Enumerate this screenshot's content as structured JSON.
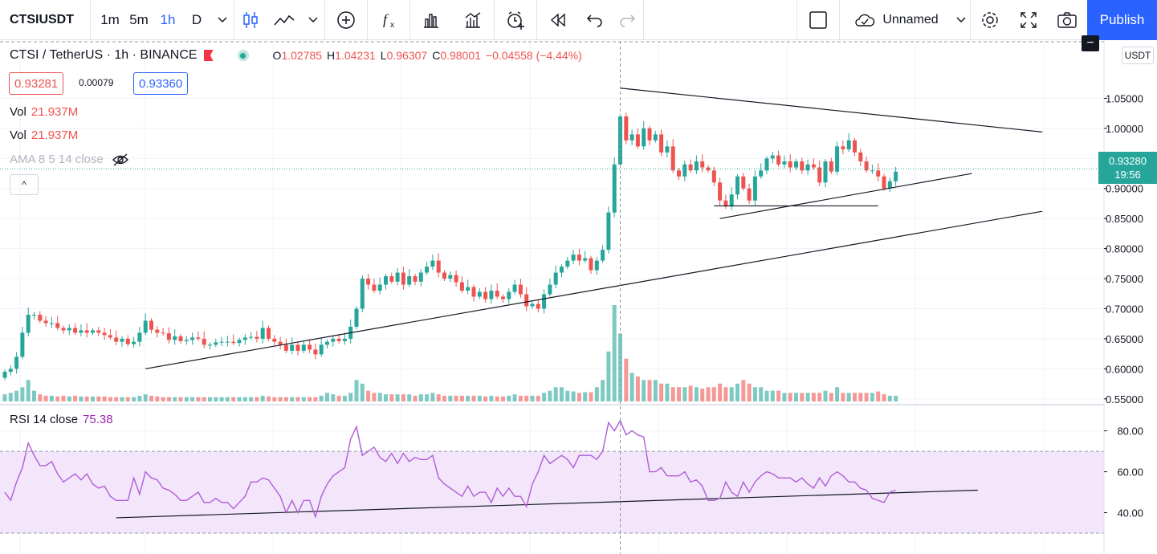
{
  "toolbar": {
    "symbol": "CTSIUSDT",
    "intervals": [
      "1m",
      "5m",
      "1h",
      "D"
    ],
    "active_interval": "1h",
    "layout_name": "Unnamed",
    "publish_label": "Publish",
    "icons": [
      "candles-icon",
      "line-icon",
      "add-icon",
      "indicators-icon",
      "templates-icon",
      "compare-icon",
      "alert-icon",
      "replay-icon",
      "undo-icon",
      "redo-icon",
      "layout-icon",
      "cloud-icon",
      "settings-icon",
      "fullscreen-icon",
      "camera-icon"
    ]
  },
  "legend": {
    "title": "CTSI / TetherUS · 1h · BINANCE",
    "o_label": "O",
    "o": "1.02785",
    "h_label": "H",
    "h": "1.04231",
    "l_label": "L",
    "l": "0.96307",
    "c_label": "C",
    "c": "0.98001",
    "change": "−0.04558 (−4.44%)",
    "bid": "0.93281",
    "spread": "0.00079",
    "ask": "0.93360",
    "vol_label": "Vol",
    "vol_value": "21.937M",
    "ama_label": "AMA 8 5 14 close",
    "collapse_icon": "^",
    "rsi_label": "RSI 14 close",
    "rsi_value": "75.38"
  },
  "axis": {
    "currency": "USDT",
    "last_price": "0.93280",
    "countdown": "19:56",
    "minus": "−"
  },
  "colors": {
    "up": "#26a69a",
    "down": "#ef5350",
    "rsi_line": "#b05cd6",
    "rsi_band": "#f3e6fb",
    "accent": "#2962ff"
  },
  "chart_data": {
    "type": "candlestick",
    "price_axis": {
      "ticks": [
        "1.05000",
        "1.00000",
        "0.95000",
        "0.90000",
        "0.85000",
        "0.80000",
        "0.75000",
        "0.70000",
        "0.65000",
        "0.60000",
        "0.55000"
      ],
      "range": [
        0.547,
        1.08
      ]
    },
    "rsi_axis": {
      "ticks": [
        "80.00",
        "60.00",
        "40.00"
      ],
      "range": [
        21,
        92
      ],
      "band": [
        30,
        70
      ]
    },
    "close": [
      0.595,
      0.6,
      0.62,
      0.66,
      0.69,
      0.69,
      0.68,
      0.676,
      0.676,
      0.668,
      0.664,
      0.668,
      0.66,
      0.664,
      0.66,
      0.664,
      0.66,
      0.656,
      0.652,
      0.645,
      0.65,
      0.641,
      0.645,
      0.66,
      0.68,
      0.665,
      0.66,
      0.659,
      0.648,
      0.654,
      0.646,
      0.648,
      0.652,
      0.65,
      0.64,
      0.64,
      0.644,
      0.645,
      0.645,
      0.643,
      0.648,
      0.652,
      0.653,
      0.65,
      0.668,
      0.65,
      0.645,
      0.64,
      0.63,
      0.64,
      0.63,
      0.64,
      0.632,
      0.624,
      0.64,
      0.645,
      0.65,
      0.646,
      0.65,
      0.67,
      0.7,
      0.75,
      0.74,
      0.73,
      0.74,
      0.754,
      0.745,
      0.76,
      0.74,
      0.754,
      0.745,
      0.76,
      0.77,
      0.78,
      0.76,
      0.75,
      0.756,
      0.744,
      0.73,
      0.736,
      0.72,
      0.728,
      0.716,
      0.73,
      0.72,
      0.716,
      0.728,
      0.74,
      0.724,
      0.704,
      0.708,
      0.7,
      0.724,
      0.74,
      0.76,
      0.77,
      0.78,
      0.79,
      0.78,
      0.784,
      0.764,
      0.78,
      0.798,
      0.86,
      0.94,
      1.02,
      0.98,
      0.99,
      0.97,
      1.0,
      0.98,
      0.99,
      0.96,
      0.97,
      0.93,
      0.92,
      0.94,
      0.93,
      0.945,
      0.935,
      0.93,
      0.91,
      0.88,
      0.87,
      0.89,
      0.92,
      0.9,
      0.88,
      0.92,
      0.93,
      0.95,
      0.955,
      0.94,
      0.945,
      0.935,
      0.945,
      0.93,
      0.94,
      0.935,
      0.91,
      0.945,
      0.928,
      0.97,
      0.965,
      0.98,
      0.96,
      0.945,
      0.93,
      0.93,
      0.92,
      0.9,
      0.912,
      0.928
    ],
    "volume_max": 0.135,
    "volume": [
      0.01,
      0.012,
      0.015,
      0.02,
      0.03,
      0.015,
      0.01,
      0.008,
      0.008,
      0.007,
      0.008,
      0.007,
      0.008,
      0.007,
      0.007,
      0.007,
      0.007,
      0.007,
      0.006,
      0.006,
      0.006,
      0.006,
      0.006,
      0.008,
      0.01,
      0.008,
      0.007,
      0.006,
      0.006,
      0.006,
      0.006,
      0.006,
      0.006,
      0.006,
      0.006,
      0.006,
      0.006,
      0.006,
      0.006,
      0.006,
      0.006,
      0.006,
      0.006,
      0.006,
      0.008,
      0.007,
      0.006,
      0.006,
      0.006,
      0.006,
      0.006,
      0.006,
      0.006,
      0.006,
      0.008,
      0.012,
      0.01,
      0.008,
      0.008,
      0.012,
      0.03,
      0.025,
      0.015,
      0.012,
      0.012,
      0.01,
      0.01,
      0.01,
      0.01,
      0.01,
      0.008,
      0.01,
      0.01,
      0.012,
      0.01,
      0.008,
      0.008,
      0.008,
      0.008,
      0.008,
      0.008,
      0.008,
      0.007,
      0.008,
      0.007,
      0.007,
      0.008,
      0.01,
      0.008,
      0.008,
      0.008,
      0.008,
      0.012,
      0.015,
      0.02,
      0.02,
      0.015,
      0.014,
      0.012,
      0.013,
      0.013,
      0.02,
      0.03,
      0.07,
      0.135,
      0.095,
      0.06,
      0.04,
      0.035,
      0.03,
      0.03,
      0.03,
      0.025,
      0.025,
      0.02,
      0.02,
      0.02,
      0.022,
      0.02,
      0.018,
      0.02,
      0.02,
      0.025,
      0.02,
      0.02,
      0.025,
      0.03,
      0.025,
      0.02,
      0.02,
      0.015,
      0.015,
      0.015,
      0.012,
      0.012,
      0.012,
      0.012,
      0.012,
      0.012,
      0.012,
      0.015,
      0.012,
      0.02,
      0.012,
      0.012,
      0.012,
      0.012,
      0.012,
      0.012,
      0.014,
      0.01,
      0.008,
      0.008
    ],
    "rsi": [
      50,
      46,
      55,
      62,
      74,
      68,
      63,
      63,
      65,
      59,
      55,
      57,
      59,
      56,
      59,
      54,
      52,
      53,
      48,
      46,
      46,
      46,
      57,
      49,
      60,
      57,
      56,
      52,
      51,
      49,
      46,
      46,
      48,
      50,
      45,
      45,
      47,
      45,
      45,
      42,
      45,
      48,
      55,
      55,
      57,
      56,
      52,
      48,
      40,
      46,
      40,
      46,
      46,
      38,
      48,
      54,
      58,
      60,
      62,
      76,
      82,
      68,
      70,
      72,
      67,
      65,
      69,
      64,
      69,
      65,
      67,
      66,
      66,
      68,
      57,
      54,
      52,
      50,
      48,
      53,
      48,
      50,
      50,
      45,
      52,
      48,
      52,
      48,
      48,
      43,
      54,
      60,
      68,
      64,
      66,
      68,
      66,
      62,
      68,
      68,
      68,
      66,
      70,
      84,
      80,
      85,
      78,
      80,
      78,
      77,
      60,
      60,
      62,
      58,
      58,
      58,
      60,
      55,
      56,
      53,
      46,
      46,
      47,
      55,
      50,
      48,
      55,
      50,
      55,
      58,
      60,
      59,
      57,
      57,
      57,
      55,
      57,
      54,
      52,
      57,
      53,
      58,
      60,
      58,
      55,
      55,
      52,
      51,
      47,
      46,
      45,
      50,
      51
    ],
    "trendlines": [
      {
        "p1": [
          24,
          0.6
        ],
        "p2": [
          177,
          0.862
        ]
      },
      {
        "p1": [
          105,
          1.067
        ],
        "p2": [
          177,
          0.994
        ]
      },
      {
        "p1": [
          122,
          0.85
        ],
        "p2": [
          165,
          0.925
        ]
      },
      {
        "p1": [
          121,
          0.871
        ],
        "p2": [
          149,
          0.871
        ]
      }
    ],
    "rsi_trendline": {
      "p1": [
        19,
        37.5
      ],
      "p2": [
        166,
        51
      ]
    },
    "crosshair_bar": 105
  }
}
